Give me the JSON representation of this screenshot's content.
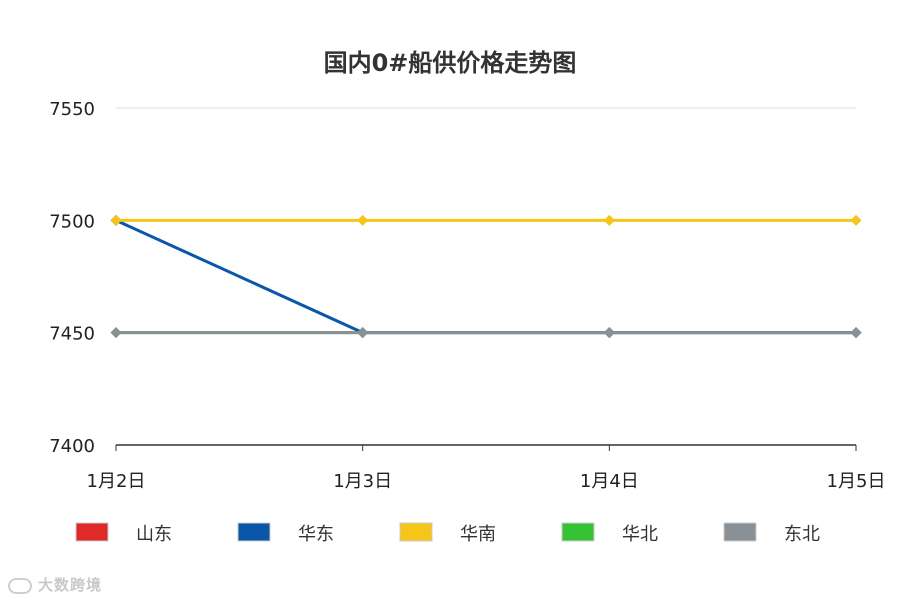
{
  "chart_data": {
    "type": "line",
    "title": "国内0#船供价格走势图",
    "categories": [
      "1月2日",
      "1月3日",
      "1月4日",
      "1月5日"
    ],
    "ylim": [
      7400,
      7550
    ],
    "yticks": [
      7400,
      7450,
      7500,
      7550
    ],
    "grid": true,
    "legend_position": "bottom",
    "series": [
      {
        "name": "山东",
        "color": "#e02a2a",
        "values": [
          null,
          null,
          null,
          null
        ]
      },
      {
        "name": "华东",
        "color": "#0a56a8",
        "values": [
          7500,
          7450,
          7450,
          7450
        ]
      },
      {
        "name": "华南",
        "color": "#f5c518",
        "values": [
          7500,
          7500,
          7500,
          7500
        ]
      },
      {
        "name": "华北",
        "color": "#35c335",
        "values": [
          7450,
          7450,
          7450,
          7450
        ]
      },
      {
        "name": "东北",
        "color": "#8a9196",
        "values": [
          7450,
          7450,
          7450,
          7450
        ]
      }
    ]
  },
  "watermark": {
    "text": "大数跨境"
  }
}
